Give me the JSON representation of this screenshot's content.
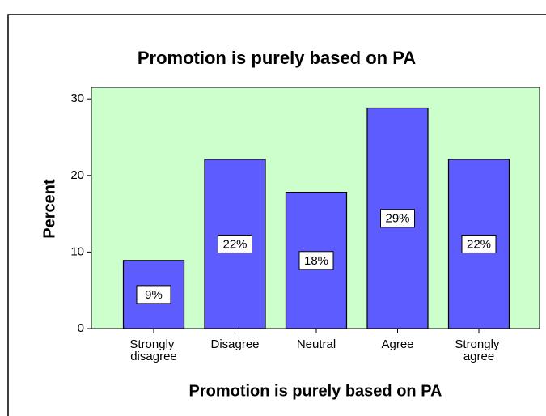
{
  "chart_data": {
    "type": "bar",
    "title": "Promotion is purely based on PA",
    "x_label": "Promotion is purely based on PA",
    "y_label": "Percent",
    "categories": [
      "Strongly disagree",
      "Disagree",
      "Neutral",
      "Agree",
      "Strongly agree"
    ],
    "values": [
      8.9,
      22.1,
      17.8,
      28.8,
      22.1
    ],
    "value_labels": [
      "9%",
      "22%",
      "18%",
      "29%",
      "22%"
    ],
    "color": "#5c5cff",
    "background": "#ccffcc",
    "ylim": [
      0,
      31.5
    ],
    "yticks": [
      0,
      10,
      20,
      30
    ]
  }
}
